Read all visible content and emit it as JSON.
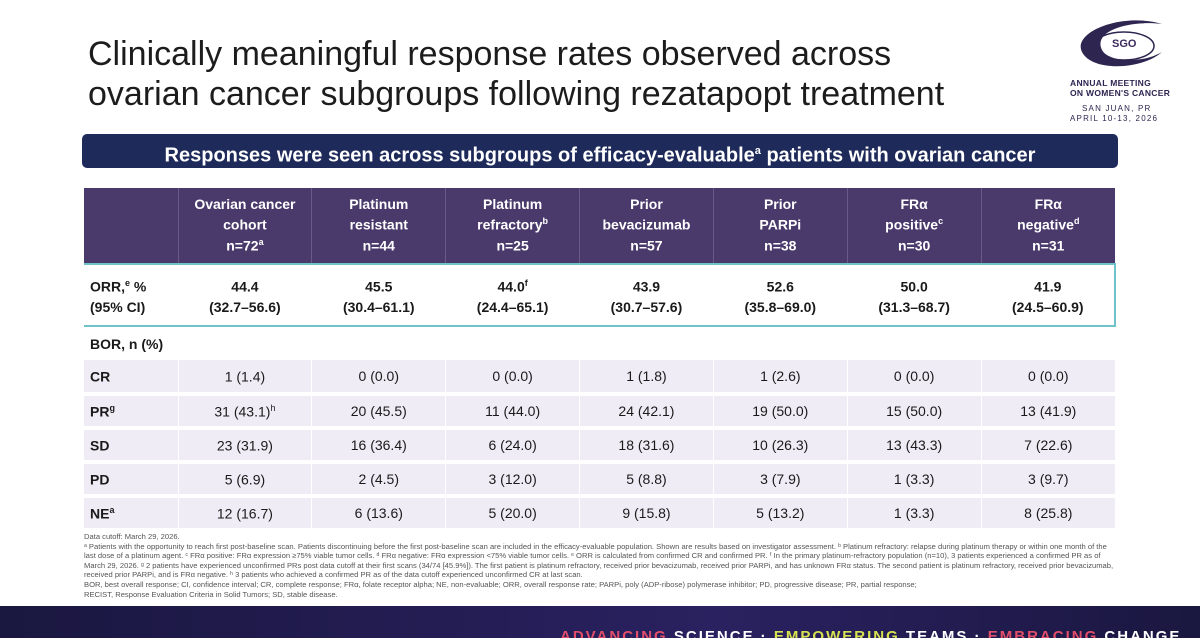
{
  "title_line1": "Clinically meaningful response rates observed across",
  "title_line2": "ovarian cancer subgroups following rezatapopt treatment",
  "logo": {
    "mark": "SGO",
    "line1": "ANNUAL MEETING",
    "line2": "ON WOMEN'S CANCER",
    "line3": "SAN JUAN, PR",
    "line4": "APRIL 10-13, 2026"
  },
  "banner": {
    "text_before": "Responses were seen across subgroups of efficacy-evaluable",
    "sup": "a",
    "text_after": " patients with ovarian cancer"
  },
  "table": {
    "columns": [
      {
        "l1": "Ovarian cancer",
        "l2": "cohort",
        "l3": "n=72",
        "l2sup": "",
        "l3sup": "a"
      },
      {
        "l1": "Platinum",
        "l2": "resistant",
        "l3": "n=44",
        "l2sup": "",
        "l3sup": ""
      },
      {
        "l1": "Platinum",
        "l2": "refractory",
        "l3": "n=25",
        "l2sup": "b",
        "l3sup": ""
      },
      {
        "l1": "Prior",
        "l2": "bevacizumab",
        "l3": "n=57",
        "l2sup": "",
        "l3sup": ""
      },
      {
        "l1": "Prior",
        "l2": "PARPi",
        "l3": "n=38",
        "l2sup": "",
        "l3sup": ""
      },
      {
        "l1": "FRα",
        "l2": "positive",
        "l3": "n=30",
        "l2sup": "c",
        "l3sup": ""
      },
      {
        "l1": "FRα",
        "l2": "negative",
        "l3": "n=31",
        "l2sup": "d",
        "l3sup": ""
      }
    ],
    "orr": {
      "label1": "ORR,",
      "label1sup": "e",
      "label1b": " %",
      "label2": "(95% CI)",
      "values": [
        {
          "v": "44.4",
          "sup": "",
          "ci": "(32.7–56.6)"
        },
        {
          "v": "45.5",
          "sup": "",
          "ci": "(30.4–61.1)"
        },
        {
          "v": "44.0",
          "sup": "f",
          "ci": "(24.4–65.1)"
        },
        {
          "v": "43.9",
          "sup": "",
          "ci": "(30.7–57.6)"
        },
        {
          "v": "52.6",
          "sup": "",
          "ci": "(35.8–69.0)"
        },
        {
          "v": "50.0",
          "sup": "",
          "ci": "(31.3–68.7)"
        },
        {
          "v": "41.9",
          "sup": "",
          "ci": "(24.5–60.9)"
        }
      ]
    },
    "bor_label": "BOR, n (%)",
    "rows": [
      {
        "label": "CR",
        "sup": "",
        "cells": [
          "1 (1.4)",
          "0 (0.0)",
          "0 (0.0)",
          "1 (1.8)",
          "1 (2.6)",
          "0 (0.0)",
          "0 (0.0)"
        ],
        "cellsup": [
          "",
          "",
          "",
          "",
          "",
          "",
          ""
        ]
      },
      {
        "label": "PR",
        "sup": "g",
        "cells": [
          "31 (43.1)",
          "20 (45.5)",
          "11 (44.0)",
          "24 (42.1)",
          "19 (50.0)",
          "15 (50.0)",
          "13 (41.9)"
        ],
        "cellsup": [
          "h",
          "",
          "",
          "",
          "",
          "",
          ""
        ]
      },
      {
        "label": "SD",
        "sup": "",
        "cells": [
          "23 (31.9)",
          "16 (36.4)",
          "6 (24.0)",
          "18 (31.6)",
          "10 (26.3)",
          "13 (43.3)",
          "7 (22.6)"
        ],
        "cellsup": [
          "",
          "",
          "",
          "",
          "",
          "",
          ""
        ]
      },
      {
        "label": "PD",
        "sup": "",
        "cells": [
          "5 (6.9)",
          "2 (4.5)",
          "3 (12.0)",
          "5 (8.8)",
          "3 (7.9)",
          "1 (3.3)",
          "3 (9.7)"
        ],
        "cellsup": [
          "",
          "",
          "",
          "",
          "",
          "",
          ""
        ]
      },
      {
        "label": "NE",
        "sup": "a",
        "cells": [
          "12 (16.7)",
          "6 (13.6)",
          "5 (20.0)",
          "9 (15.8)",
          "5 (13.2)",
          "1 (3.3)",
          "8 (25.8)"
        ],
        "cellsup": [
          "",
          "",
          "",
          "",
          "",
          "",
          ""
        ]
      }
    ]
  },
  "footnotes": [
    "Data cutoff: March 29, 2026.",
    "ᵃ Patients with the opportunity to reach first post-baseline scan. Patients discontinuing before the first post-baseline scan are included in the efficacy-evaluable population. Shown are results based on investigator assessment. ᵇ Platinum refractory: relapse during platinum therapy or within one month of the last dose of a platinum agent. ᶜ FRα positive: FRα expression ≥75% viable tumor cells. ᵈ FRα negative: FRα expression <75% viable tumor cells. ᵉ ORR is calculated from confirmed CR and confirmed PR. ᶠ In the primary platinum-refractory population (n=10), 3 patients experienced a confirmed PR as of March 29, 2026. ᵍ 2 patients have experienced unconfirmed PRs post data cutoff at their first scans (34/74 [45.9%]). The first patient is platinum refractory, received prior bevacizumab, received prior PARPi, and has unknown FRα status. The second patient is platinum refractory, received prior bevacizumab, received prior PARPi, and is FRα negative. ʰ 3 patients who achieved a confirmed PR as of the data cutoff experienced unconfirmed CR at last scan.",
    "BOR, best overall response; CI, confidence interval; CR, complete response; FRα, folate receptor alpha; NE, non-evaluable; ORR, overall response rate; PARPi, poly (ADP-ribose) polymerase inhibitor; PD, progressive disease; PR, partial response;",
    "RECIST, Response Evaluation Criteria in Solid Tumors; SD, stable disease."
  ],
  "bottom_tagline": {
    "a": "ADVANCING",
    "b": " SCIENCE · ",
    "c": "EMPOWERING",
    "d": " TEAMS · ",
    "e": "EMBRACING",
    "f": " CHANGE"
  }
}
